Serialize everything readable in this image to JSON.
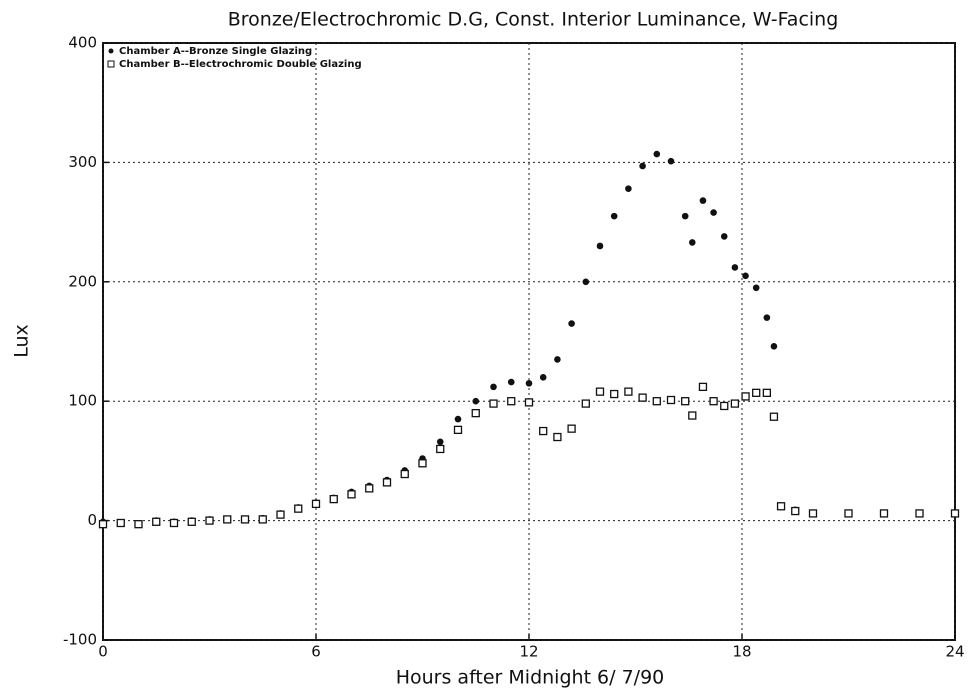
{
  "chart_data": {
    "type": "scatter",
    "title": "Bronze/Electrochromic D.G, Const. Interior Luminance, W-Facing",
    "x_label": "Hours after Midnight  6/ 7/90",
    "y_label": "Lux",
    "x": [
      0,
      0.5,
      1,
      1.5,
      2,
      2.5,
      3,
      3.5,
      4,
      4.5,
      5,
      5.5,
      6,
      6.5,
      7,
      7.5,
      8,
      8.5,
      9,
      9.5,
      10,
      10.5,
      11,
      11.5,
      12,
      12.4,
      12.8,
      13.2,
      13.6,
      14,
      14.4,
      14.8,
      15.2,
      15.6,
      16,
      16.4,
      16.6,
      16.9,
      17.2,
      17.5,
      17.8,
      18.1,
      18.4,
      18.7,
      18.9,
      19.1,
      19.5,
      20,
      21,
      22,
      23,
      24
    ],
    "series": [
      {
        "name": "Chamber A--Bronze Single Glazing",
        "color": "#111111",
        "marker": "circle",
        "values": [
          -1,
          -2,
          -3,
          0,
          -1,
          0,
          1,
          1,
          1,
          2,
          6,
          11,
          15,
          19,
          24,
          29,
          34,
          42,
          52,
          66,
          85,
          100,
          112,
          116,
          115,
          120,
          135,
          165,
          200,
          230,
          255,
          278,
          297,
          307,
          301,
          255,
          233,
          268,
          258,
          238,
          212,
          205,
          195,
          170,
          146,
          12,
          9,
          6,
          6,
          6,
          6,
          6
        ]
      },
      {
        "name": "Chamber B--Electrochromic Double Glazing",
        "color": "#111111",
        "marker": "square",
        "values": [
          -3,
          -2,
          -3,
          -1,
          -2,
          -1,
          0,
          1,
          1,
          1,
          5,
          10,
          14,
          18,
          22,
          27,
          32,
          39,
          48,
          60,
          76,
          90,
          98,
          100,
          99,
          75,
          70,
          77,
          98,
          108,
          106,
          108,
          103,
          100,
          101,
          100,
          88,
          112,
          100,
          96,
          98,
          104,
          107,
          107,
          87,
          12,
          8,
          6,
          6,
          6,
          6,
          6
        ]
      }
    ],
    "xlim": [
      0,
      24
    ],
    "xticks": [
      0,
      6,
      12,
      18,
      24
    ],
    "ylim": [
      -100,
      400
    ],
    "yticks": [
      -100,
      0,
      100,
      200,
      300,
      400
    ],
    "grid": true,
    "legend": "upper left"
  }
}
